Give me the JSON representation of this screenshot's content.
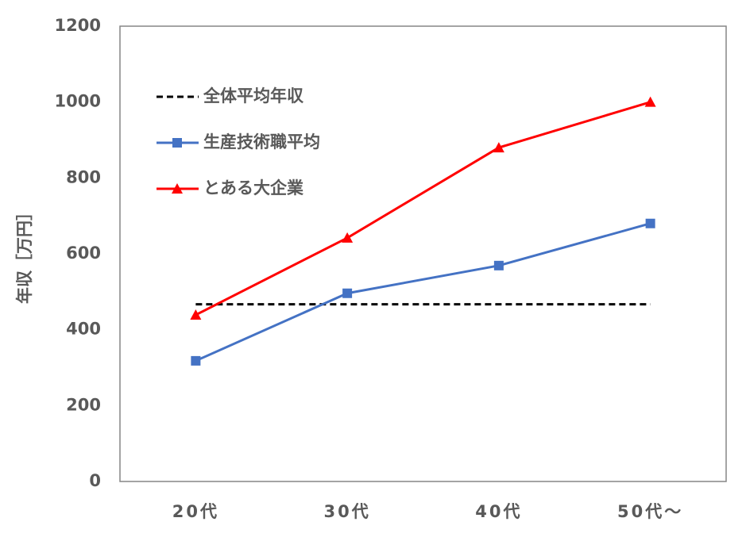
{
  "chart_data": {
    "type": "line",
    "y_label": "年収［万円］",
    "categories": [
      "20代",
      "30代",
      "40代",
      "50代〜"
    ],
    "series": [
      {
        "name": "全体平均年収",
        "color": "#000000",
        "dash": true,
        "marker": "none",
        "values": [
          467,
          467,
          467,
          467
        ]
      },
      {
        "name": "生産技術職平均",
        "color": "#4472c4",
        "marker": "square",
        "values": [
          318,
          496,
          569,
          680
        ]
      },
      {
        "name": "とある大企業",
        "color": "#ff0000",
        "marker": "triangle",
        "values": [
          439,
          642,
          880,
          1000
        ]
      }
    ],
    "ylim": [
      0,
      1200
    ],
    "yticks": [
      0,
      200,
      400,
      600,
      800,
      1000,
      1200
    ],
    "grid": false,
    "legend": "upper left"
  }
}
